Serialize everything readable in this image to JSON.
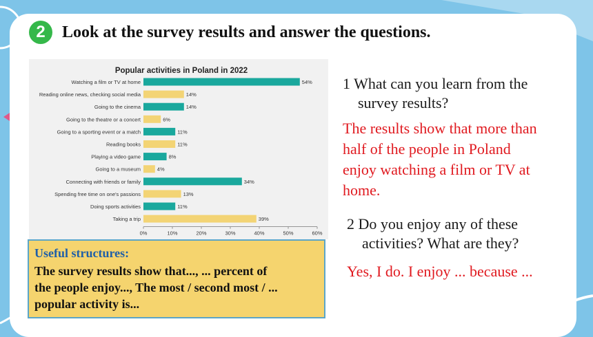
{
  "step_number": "2",
  "heading": "Look at the survey results and answer the questions.",
  "chart_data": {
    "type": "bar",
    "orientation": "horizontal",
    "title": "Popular activities in Poland in 2022",
    "categories": [
      "Watching a film or TV at home",
      "Reading online news, checking social media",
      "Going to the cinema",
      "Going to the theatre or a concert",
      "Going to a sporting event or a match",
      "Reading books",
      "Playing a video game",
      "Going to a museum",
      "Connecting with friends or family",
      "Spending free time on one's passions",
      "Doing sports activities",
      "Taking a trip"
    ],
    "values": [
      54,
      14,
      14,
      6,
      11,
      11,
      8,
      4,
      34,
      13,
      11,
      39
    ],
    "value_labels": [
      "54%",
      "14%",
      "14%",
      "6%",
      "11%",
      "11%",
      "8%",
      "4%",
      "34%",
      "13%",
      "11%",
      "39%"
    ],
    "bar_colors": [
      "#1aa89d",
      "#f3d475",
      "#1aa89d",
      "#f3d475",
      "#1aa89d",
      "#f3d475",
      "#1aa89d",
      "#f3d475",
      "#1aa89d",
      "#f3d475",
      "#1aa89d",
      "#f3d475"
    ],
    "xlim": [
      0,
      60
    ],
    "xticks": [
      "0%",
      "10%",
      "20%",
      "30%",
      "40%",
      "50%",
      "60%"
    ],
    "grid": false
  },
  "useful": {
    "title": "Useful structures:",
    "line1": "The survey results show that..., ... percent of",
    "line2": "the people enjoy..., The most / second most / ...",
    "line3": "popular activity is..."
  },
  "q1": {
    "line1": "1 What can you learn from the",
    "line2": "survey results?"
  },
  "a1": {
    "line1": "The results show that more than",
    "line2": "half of the people in Poland",
    "line3": "enjoy watching a film or TV at",
    "line4": "home."
  },
  "q2": {
    "line1": "2 Do you enjoy any of these",
    "line2": "activities? What are they?"
  },
  "a2": "Yes, I do. I enjoy ... because ...",
  "colors": {
    "background": "#7ec4e8",
    "teal_bar": "#1aa89d",
    "yellow_bar": "#f3d475",
    "answer_red": "#e0191f",
    "badge_green": "#35b84a",
    "useful_title_blue": "#1f5fa8",
    "useful_box": "#f5d46e"
  }
}
